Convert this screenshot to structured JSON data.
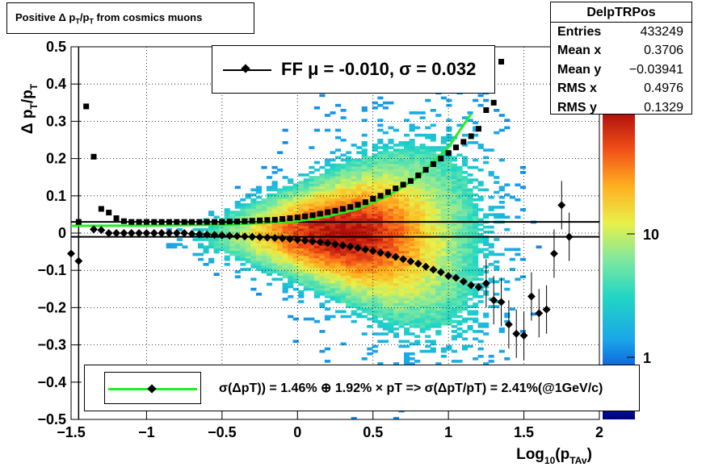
{
  "title": "Positive Δ p_T/p_T from cosmics muons",
  "stats": {
    "name": "DelpTRPos",
    "rows": [
      {
        "label": "Entries",
        "value": "433249"
      },
      {
        "label": "Mean x",
        "value": "0.3706"
      },
      {
        "label": "Mean y",
        "value": "−0.03941"
      },
      {
        "label": "RMS x",
        "value": "0.4976"
      },
      {
        "label": "RMS y",
        "value": "0.1329"
      }
    ]
  },
  "fit_legend": "FF μ = -0.010, σ =   0.032",
  "resolution_legend": "σ(ΔpT)) =  1.46% ⊕  1.92% × pT => σ(ΔpT/pT) =  2.41%(@1GeV/c)",
  "colors": {
    "fit_curve": "#22ee22",
    "markers": "#000000",
    "frame": "#000000"
  },
  "chart_data": {
    "type": "heatmap",
    "xlabel": "Log_10(p_TAv)",
    "ylabel": "Δ p_T/p_T",
    "xlim": [
      -1.5,
      2.0
    ],
    "ylim": [
      -0.5,
      0.5
    ],
    "x_ticks": [
      "−1.5",
      "−1",
      "−0.5",
      "0",
      "0.5",
      "1",
      "1.5",
      "2"
    ],
    "y_ticks": [
      "−0.5",
      "−0.4",
      "−0.3",
      "−0.2",
      "−0.1",
      "0",
      "0.1",
      "0.2",
      "0.3",
      "0.4",
      "0.5"
    ],
    "z_scale": "log",
    "z_ticks": [
      "1",
      "10"
    ],
    "grid": true,
    "horizontal_lines": [
      0.03,
      -0.01
    ],
    "sigma_markers": {
      "x": [
        -1.45,
        -1.4,
        -1.35,
        -1.3,
        -1.25,
        -1.2,
        -1.15,
        -1.1,
        -1.05,
        -1.0,
        -0.95,
        -0.9,
        -0.85,
        -0.8,
        -0.75,
        -0.7,
        -0.65,
        -0.6,
        -0.55,
        -0.5,
        -0.45,
        -0.4,
        -0.35,
        -0.3,
        -0.25,
        -0.2,
        -0.15,
        -0.1,
        -0.05,
        0.0,
        0.05,
        0.1,
        0.15,
        0.2,
        0.25,
        0.3,
        0.35,
        0.4,
        0.45,
        0.5,
        0.55,
        0.6,
        0.65,
        0.7,
        0.75,
        0.8,
        0.85,
        0.9,
        0.95,
        1.0,
        1.05,
        1.1,
        1.15,
        1.2,
        1.25,
        1.3,
        1.35
      ],
      "y": [
        0.03,
        0.34,
        0.205,
        0.065,
        0.055,
        0.04,
        0.032,
        0.03,
        0.03,
        0.03,
        0.03,
        0.03,
        0.03,
        0.03,
        0.03,
        0.03,
        0.03,
        0.03,
        0.03,
        0.03,
        0.031,
        0.031,
        0.032,
        0.033,
        0.034,
        0.035,
        0.036,
        0.038,
        0.04,
        0.042,
        0.045,
        0.048,
        0.052,
        0.056,
        0.06,
        0.065,
        0.07,
        0.076,
        0.083,
        0.092,
        0.1,
        0.11,
        0.12,
        0.13,
        0.14,
        0.155,
        0.17,
        0.185,
        0.2,
        0.215,
        0.23,
        0.245,
        0.26,
        0.28,
        0.33,
        0.35,
        0.46
      ]
    },
    "mean_markers": {
      "x": [
        -1.5,
        -1.45,
        -1.35,
        -1.3,
        -1.25,
        -1.2,
        -1.15,
        -1.1,
        -1.05,
        -1.0,
        -0.95,
        -0.9,
        -0.85,
        -0.8,
        -0.75,
        -0.7,
        -0.65,
        -0.6,
        -0.55,
        -0.5,
        -0.45,
        -0.4,
        -0.35,
        -0.3,
        -0.25,
        -0.2,
        -0.15,
        -0.1,
        -0.05,
        0.0,
        0.05,
        0.1,
        0.15,
        0.2,
        0.25,
        0.3,
        0.35,
        0.4,
        0.45,
        0.5,
        0.55,
        0.6,
        0.65,
        0.7,
        0.75,
        0.8,
        0.85,
        0.9,
        0.95,
        1.0,
        1.05,
        1.1,
        1.15,
        1.2,
        1.25,
        1.3,
        1.35,
        1.4,
        1.45,
        1.5,
        1.55,
        1.6,
        1.65,
        1.7,
        1.75,
        1.8
      ],
      "y": [
        -0.055,
        -0.075,
        0.01,
        0.008,
        0.0,
        0.0,
        0.0,
        0.0,
        0.0,
        0.0,
        0.0,
        0.0,
        0.0,
        0.0,
        0.0,
        -0.002,
        -0.003,
        -0.004,
        -0.005,
        -0.006,
        -0.007,
        -0.008,
        -0.009,
        -0.01,
        -0.011,
        -0.012,
        -0.013,
        -0.014,
        -0.016,
        -0.018,
        -0.02,
        -0.022,
        -0.024,
        -0.027,
        -0.03,
        -0.033,
        -0.036,
        -0.04,
        -0.044,
        -0.048,
        -0.053,
        -0.058,
        -0.064,
        -0.07,
        -0.076,
        -0.082,
        -0.09,
        -0.098,
        -0.105,
        -0.115,
        -0.12,
        -0.13,
        -0.14,
        -0.145,
        -0.135,
        -0.18,
        -0.185,
        -0.245,
        -0.27,
        -0.275,
        -0.17,
        -0.215,
        -0.205,
        -0.055,
        0.075,
        -0.01
      ]
    },
    "fit_curve": {
      "x": [
        -1.5,
        -1.0,
        -0.5,
        0.0,
        0.2,
        0.4,
        0.6,
        0.8,
        1.0,
        1.1,
        1.15
      ],
      "y": [
        0.0195,
        0.02,
        0.022,
        0.032,
        0.045,
        0.065,
        0.1,
        0.15,
        0.23,
        0.29,
        0.32
      ]
    }
  }
}
